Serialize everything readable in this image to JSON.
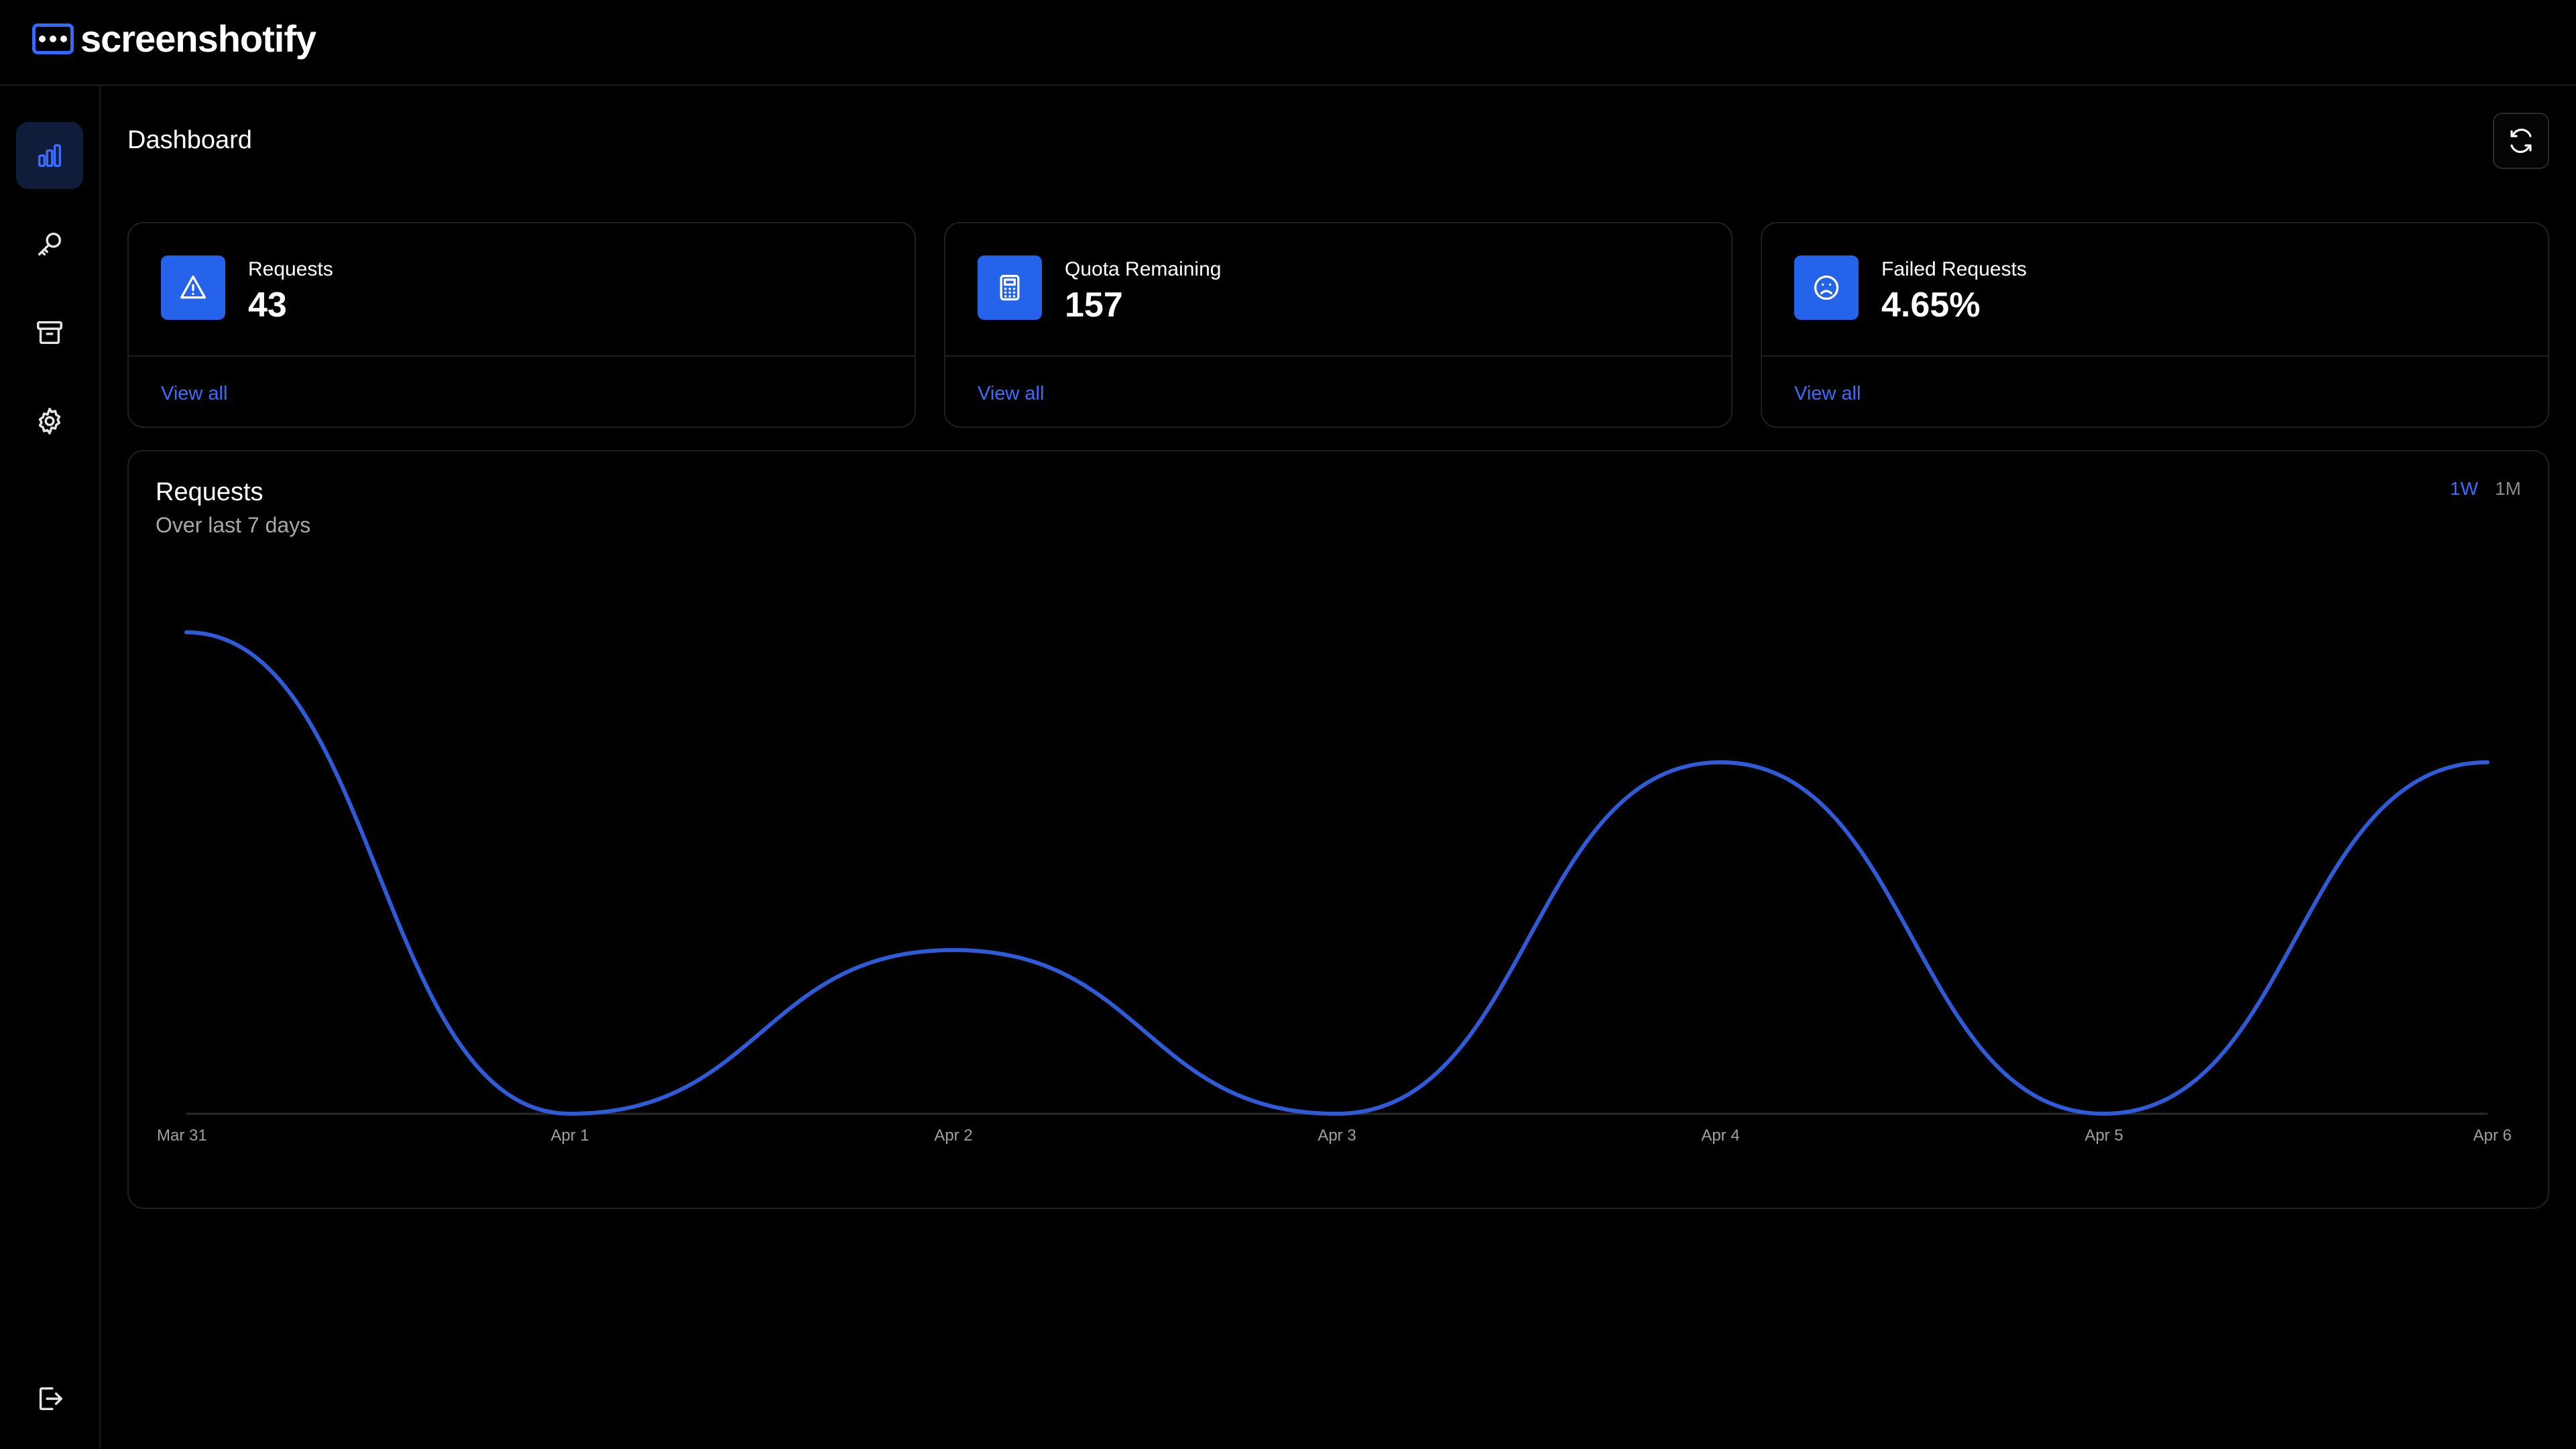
{
  "app": {
    "name": "screenshotify"
  },
  "sidebar": {
    "items": [
      {
        "name": "analytics",
        "icon": "bar-chart-icon",
        "active": true
      },
      {
        "name": "api-keys",
        "icon": "key-icon",
        "active": false
      },
      {
        "name": "archive",
        "icon": "archive-icon",
        "active": false
      },
      {
        "name": "settings",
        "icon": "gear-icon",
        "active": false
      },
      {
        "name": "logout",
        "icon": "logout-icon",
        "active": false
      }
    ]
  },
  "header": {
    "title": "Dashboard",
    "refresh_icon": "refresh-icon"
  },
  "stats": [
    {
      "label": "Requests",
      "value": "43",
      "link": "View all",
      "icon": "warning-triangle-icon"
    },
    {
      "label": "Quota Remaining",
      "value": "157",
      "link": "View all",
      "icon": "calculator-icon"
    },
    {
      "label": "Failed Requests",
      "value": "4.65%",
      "link": "View all",
      "icon": "sad-face-icon"
    }
  ],
  "chart_card": {
    "title": "Requests",
    "subtitle": "Over last 7 days",
    "ranges": [
      "1W",
      "1M"
    ],
    "selected_range": "1W"
  },
  "colors": {
    "accent": "#2563eb",
    "link": "#3b6dff",
    "line": "#2f5bd8",
    "background": "#000000"
  },
  "chart_data": {
    "type": "line",
    "categories": [
      "Mar 31",
      "Apr 1",
      "Apr 2",
      "Apr 3",
      "Apr 4",
      "Apr 5",
      "Apr 6"
    ],
    "series": [
      {
        "values": [
          10,
          0,
          3.4,
          0,
          7.3,
          0,
          7.3
        ]
      }
    ],
    "title": "Requests",
    "subtitle": "Over last 7 days",
    "ylim": [
      0,
      10
    ],
    "grid": false,
    "smooth": true
  }
}
